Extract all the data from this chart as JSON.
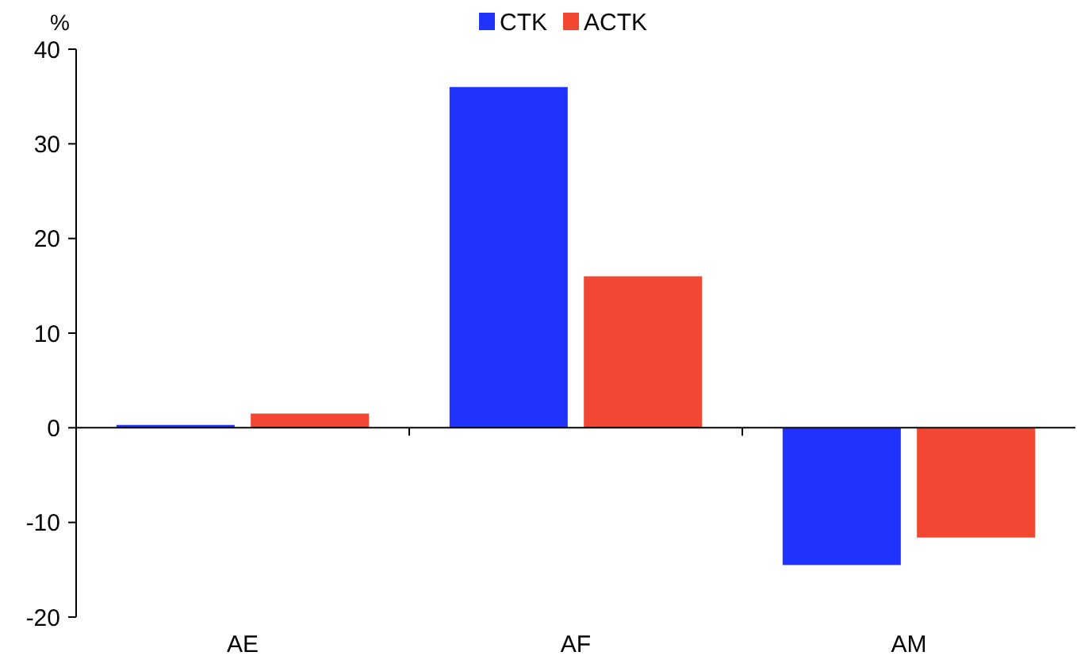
{
  "chart_data": {
    "type": "bar",
    "ylabel": "%",
    "categories": [
      "AE",
      "AF",
      "AM"
    ],
    "series": [
      {
        "name": "CTK",
        "color": "#2033ff",
        "values": [
          0.3,
          36.0,
          -14.5
        ]
      },
      {
        "name": "ACTK",
        "color": "#f24833",
        "values": [
          1.5,
          16.0,
          -11.6
        ]
      }
    ],
    "ylim": [
      -20,
      40
    ],
    "yticks": [
      -20,
      -10,
      0,
      10,
      20,
      30,
      40
    ],
    "legend": "top"
  }
}
